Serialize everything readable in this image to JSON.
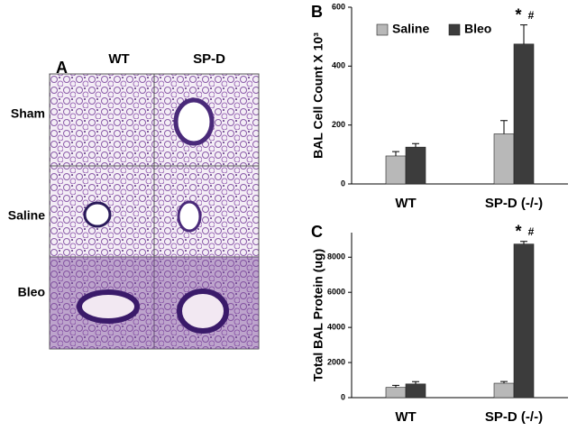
{
  "panel_a": {
    "label": "A",
    "columns": [
      "WT",
      "SP-D"
    ],
    "rows": [
      "Sham",
      "Saline",
      "Bleo"
    ]
  },
  "chart_data": [
    {
      "type": "bar",
      "panel_label": "B",
      "y_label": "BAL Cell Count X 10³",
      "categories": [
        "WT",
        "SP-D (-/-)"
      ],
      "series": [
        {
          "name": "Saline",
          "color": "#b8b8b8",
          "values": [
            95,
            170
          ],
          "errors": [
            15,
            45
          ]
        },
        {
          "name": "Bleo",
          "color": "#3c3c3c",
          "values": [
            125,
            475
          ],
          "errors": [
            12,
            65
          ]
        }
      ],
      "annotations": [
        "*",
        "#"
      ],
      "ylim": [
        0,
        600
      ],
      "yticks": [
        0,
        200,
        400,
        600
      ],
      "legend": "top-left"
    },
    {
      "type": "bar",
      "panel_label": "C",
      "y_label": "Total BAL Protein (ug)",
      "categories": [
        "WT",
        "SP-D (-/-)"
      ],
      "series": [
        {
          "color": "#b8b8b8",
          "values": [
            580,
            820
          ],
          "errors": [
            120,
            100
          ]
        },
        {
          "color": "#3c3c3c",
          "values": [
            780,
            8750
          ],
          "errors": [
            130,
            150
          ]
        }
      ],
      "annotations": [
        "*",
        "#"
      ],
      "ylim": [
        0,
        9400
      ],
      "yticks": [
        0,
        2000,
        4000,
        6000,
        8000
      ]
    }
  ]
}
